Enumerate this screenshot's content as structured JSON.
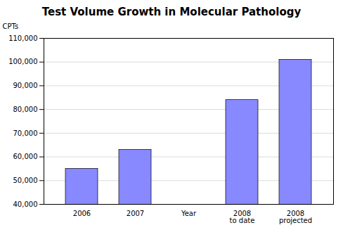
{
  "chart_data": {
    "type": "bar",
    "title": "Test Volume Growth in Molecular Pathology",
    "ylabel": "CPTs",
    "categories": [
      "2006",
      "2007",
      "Year",
      "2008\nto date",
      "2008\nprojected"
    ],
    "values": [
      55000,
      63000,
      null,
      84000,
      101000
    ],
    "color": "#8888ff",
    "ylim": [
      40000,
      110000
    ],
    "yticks": [
      {
        "value": 40000,
        "label": "40,000"
      },
      {
        "value": 50000,
        "label": "50,000"
      },
      {
        "value": 60000,
        "label": "60,000"
      },
      {
        "value": 70000,
        "label": "70,000"
      },
      {
        "value": 80000,
        "label": "80,000"
      },
      {
        "value": 90000,
        "label": "90,000"
      },
      {
        "value": 100000,
        "label": "100,000"
      },
      {
        "value": 110000,
        "label": "110,000"
      }
    ],
    "grid": true
  }
}
